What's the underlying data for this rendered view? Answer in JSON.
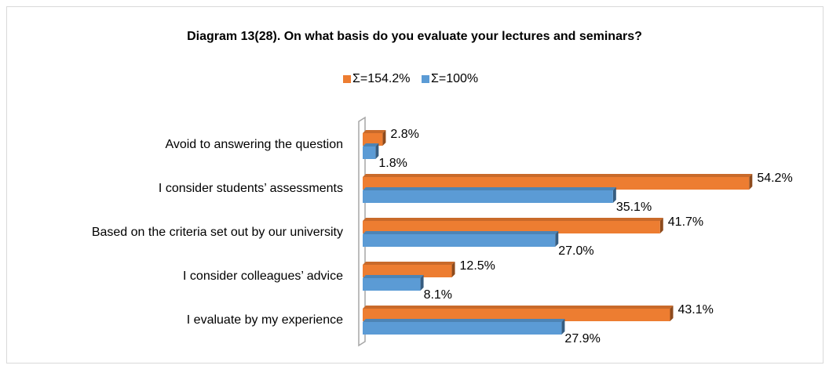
{
  "chart_data": {
    "type": "bar",
    "orientation": "horizontal",
    "title": "Diagram 13(28). On what basis do you evaluate your lectures and seminars?",
    "categories": [
      "Avoid to answering  the question",
      "I consider students’ assessments",
      "Based on the criteria set out by our university",
      "I consider colleagues’ advice",
      "I evaluate by my experience"
    ],
    "series": [
      {
        "name": "Σ=154.2%",
        "color": "#ed7d31",
        "values": [
          2.8,
          54.2,
          41.7,
          12.5,
          43.1
        ],
        "value_labels": [
          "2.8%",
          "54.2%",
          "41.7%",
          "12.5%",
          "43.1%"
        ]
      },
      {
        "name": "Σ=100%",
        "color": "#5b9bd5",
        "values": [
          1.8,
          35.1,
          27.0,
          8.1,
          27.9
        ],
        "value_labels": [
          "1.8%",
          "35.1%",
          "27.0%",
          "8.1%",
          "27.9%"
        ]
      }
    ],
    "xlim": [
      0,
      60
    ],
    "legend": "top"
  }
}
